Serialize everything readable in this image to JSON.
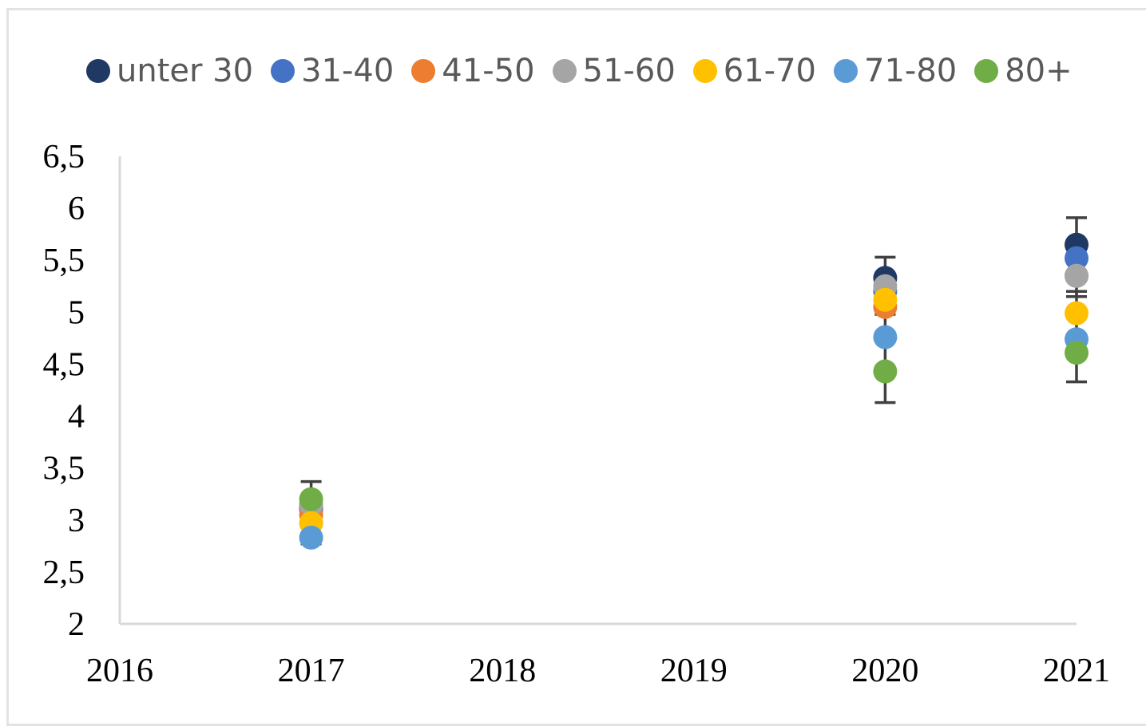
{
  "chart_data": {
    "type": "scatter",
    "title": "",
    "xlabel": "",
    "ylabel": "",
    "xlim": [
      2016,
      2021
    ],
    "ylim": [
      2,
      6.5
    ],
    "x_ticks": [
      "2016",
      "2017",
      "2018",
      "2019",
      "2020",
      "2021"
    ],
    "y_ticks": [
      "2",
      "2,5",
      "3",
      "3,5",
      "4",
      "4,5",
      "5",
      "5,5",
      "6",
      "6,5"
    ],
    "grid": false,
    "legend_position": "top",
    "series": [
      {
        "name": "unter 30",
        "color": "#203864",
        "points": [
          {
            "x": 2017,
            "y": 3.13
          },
          {
            "x": 2020,
            "y": 5.33
          },
          {
            "x": 2021,
            "y": 5.65
          }
        ]
      },
      {
        "name": "31-40",
        "color": "#4472C4",
        "points": [
          {
            "x": 2017,
            "y": 3.1
          },
          {
            "x": 2020,
            "y": 5.2
          },
          {
            "x": 2021,
            "y": 5.52
          }
        ]
      },
      {
        "name": "41-50",
        "color": "#ED7D31",
        "points": [
          {
            "x": 2017,
            "y": 3.05
          },
          {
            "x": 2020,
            "y": 5.05
          },
          {
            "x": 2021,
            "y": 5.35
          }
        ]
      },
      {
        "name": "51-60",
        "color": "#A5A5A5",
        "points": [
          {
            "x": 2017,
            "y": 3.15
          },
          {
            "x": 2020,
            "y": 5.25
          },
          {
            "x": 2021,
            "y": 5.35
          }
        ]
      },
      {
        "name": "61-70",
        "color": "#FFC000",
        "points": [
          {
            "x": 2017,
            "y": 2.97
          },
          {
            "x": 2020,
            "y": 5.12
          },
          {
            "x": 2021,
            "y": 4.99
          }
        ]
      },
      {
        "name": "71-80",
        "color": "#5B9BD5",
        "points": [
          {
            "x": 2017,
            "y": 2.83
          },
          {
            "x": 2020,
            "y": 4.76
          },
          {
            "x": 2021,
            "y": 4.74
          }
        ]
      },
      {
        "name": "80+",
        "color": "#70AD47",
        "points": [
          {
            "x": 2017,
            "y": 3.2
          },
          {
            "x": 2020,
            "y": 4.43
          },
          {
            "x": 2021,
            "y": 4.61
          }
        ]
      }
    ],
    "error_bars": [
      {
        "x": 2017,
        "low": 2.77,
        "high": 3.37
      },
      {
        "x": 2020,
        "low": 4.13,
        "high": 5.53
      },
      {
        "x": 2020,
        "low": 4.98,
        "high": 5.12
      },
      {
        "x": 2021,
        "low": 4.33,
        "high": 5.91
      },
      {
        "x": 2021,
        "low": 5.15,
        "high": 5.2
      }
    ],
    "error_bar_color": "#404040",
    "axis_color": "#d9d9d9"
  }
}
